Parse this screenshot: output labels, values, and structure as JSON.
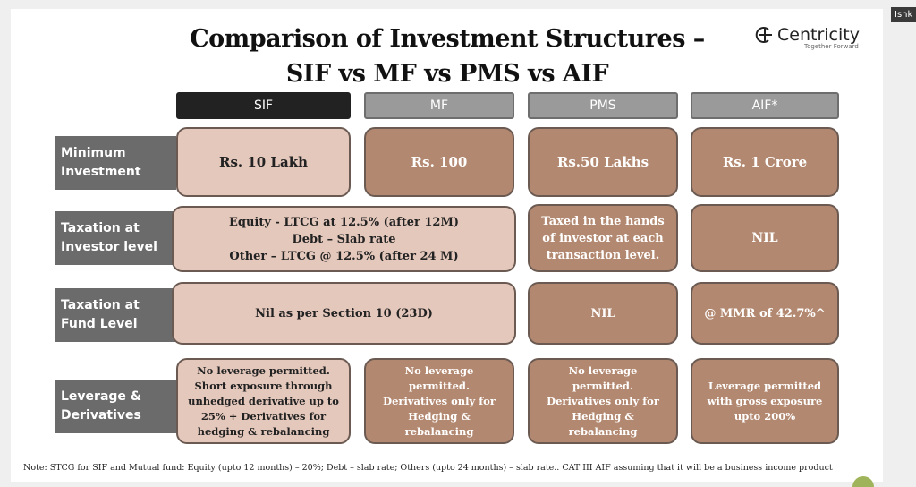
{
  "corner_label": "Ishk",
  "title_line1": "Comparison of Investment Structures –",
  "title_line2": "SIF vs MF vs PMS vs AIF",
  "logo": {
    "name": "Centricity",
    "tagline": "Together Forward"
  },
  "columns": [
    "SIF",
    "MF",
    "PMS",
    "AIF*"
  ],
  "rows": {
    "min_investment": {
      "label": "Minimum\nInvestment",
      "sif": "Rs. 10 Lakh",
      "mf": "Rs. 100",
      "pms": "Rs.50 Lakhs",
      "aif": "Rs. 1 Crore"
    },
    "tax_investor": {
      "label": "Taxation at\nInvestor level",
      "sif_mf": "Equity - LTCG at 12.5% (after 12M)\nDebt – Slab rate\nOther – LTCG @ 12.5% (after 24 M)",
      "pms": "Taxed in the hands\nof investor at each\ntransaction level.",
      "aif": "NIL"
    },
    "tax_fund": {
      "label": "Taxation at\nFund Level",
      "sif_mf": "Nil as per Section 10 (23D)",
      "pms": "NIL",
      "aif": "@ MMR of 42.7%^"
    },
    "leverage": {
      "label": "Leverage &\nDerivatives",
      "sif": "No leverage permitted.\nShort exposure through\nunhedged derivative up to\n25% + Derivatives for\nhedging & rebalancing",
      "mf": "No leverage\npermitted.\nDerivatives only for\nHedging &\nrebalancing",
      "pms": "No leverage\npermitted.\nDerivatives only for\nHedging &\nrebalancing",
      "aif": "Leverage permitted\nwith gross exposure\nupto 200%"
    }
  },
  "note": "Note: STCG for SIF and Mutual fund: Equity (upto 12 months) – 20%; Debt – slab rate; Others (upto 24 months) – slab rate.. CAT III AIF assuming that it will be a business income product"
}
